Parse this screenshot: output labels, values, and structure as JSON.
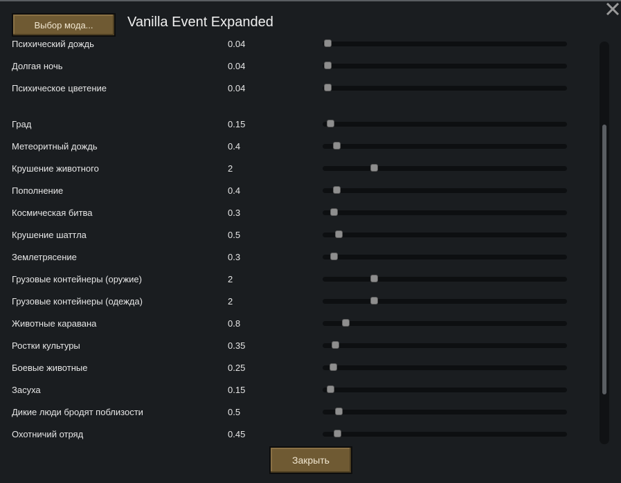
{
  "header": {
    "mod_select_label": "Выбор мода...",
    "title": "Vanilla Event Expanded"
  },
  "slider_max": 10,
  "settings": [
    {
      "label": "Психический дождь",
      "value": "0.04",
      "num": 0.04
    },
    {
      "label": "Долгая ночь",
      "value": "0.04",
      "num": 0.04
    },
    {
      "label": "Психическое цветение",
      "value": "0.04",
      "num": 0.04
    },
    {
      "label": "Град",
      "value": "0.15",
      "num": 0.15
    },
    {
      "label": "Метеоритный дождь",
      "value": "0.4",
      "num": 0.4
    },
    {
      "label": "Крушение животного",
      "value": "2",
      "num": 2
    },
    {
      "label": "Пополнение",
      "value": "0.4",
      "num": 0.4
    },
    {
      "label": "Космическая битва",
      "value": "0.3",
      "num": 0.3
    },
    {
      "label": "Крушение шаттла",
      "value": "0.5",
      "num": 0.5
    },
    {
      "label": "Землетрясение",
      "value": "0.3",
      "num": 0.3
    },
    {
      "label": "Грузовые контейнеры (оружие)",
      "value": "2",
      "num": 2
    },
    {
      "label": "Грузовые контейнеры (одежда)",
      "value": "2",
      "num": 2
    },
    {
      "label": "Животные каравана",
      "value": "0.8",
      "num": 0.8
    },
    {
      "label": "Ростки культуры",
      "value": "0.35",
      "num": 0.35
    },
    {
      "label": "Боевые животные",
      "value": "0.25",
      "num": 0.25
    },
    {
      "label": "Засуха",
      "value": "0.15",
      "num": 0.15
    },
    {
      "label": "Дикие люди бродят поблизости",
      "value": "0.5",
      "num": 0.5
    },
    {
      "label": "Охотничий отряд",
      "value": "0.45",
      "num": 0.45
    }
  ],
  "footer": {
    "close_label": "Закрыть"
  }
}
